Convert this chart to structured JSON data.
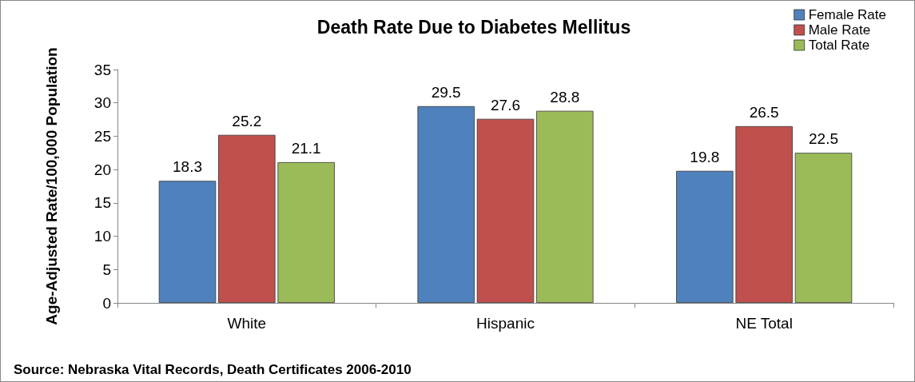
{
  "chart_data": {
    "type": "bar",
    "title": "Death Rate Due to Diabetes Mellitus",
    "ylabel": "Age-Adjusted Rate/100,000 Population",
    "categories": [
      "White",
      "Hispanic",
      "NE Total"
    ],
    "series": [
      {
        "name": "Female Rate",
        "color": "#4f81bd",
        "values": [
          18.3,
          29.5,
          19.8
        ]
      },
      {
        "name": "Male Rate",
        "color": "#c0504d",
        "values": [
          25.2,
          27.6,
          26.5
        ]
      },
      {
        "name": "Total Rate",
        "color": "#9bbb59",
        "values": [
          21.1,
          28.8,
          22.5
        ]
      }
    ],
    "ylim": [
      0,
      35
    ],
    "yticks": [
      0,
      5,
      10,
      15,
      20,
      25,
      30,
      35
    ],
    "grid": false,
    "legend": "top right",
    "data_labels": true,
    "annotations": [
      "Source: Nebraska Vital Records, Death Certificates 2006-2010"
    ]
  }
}
